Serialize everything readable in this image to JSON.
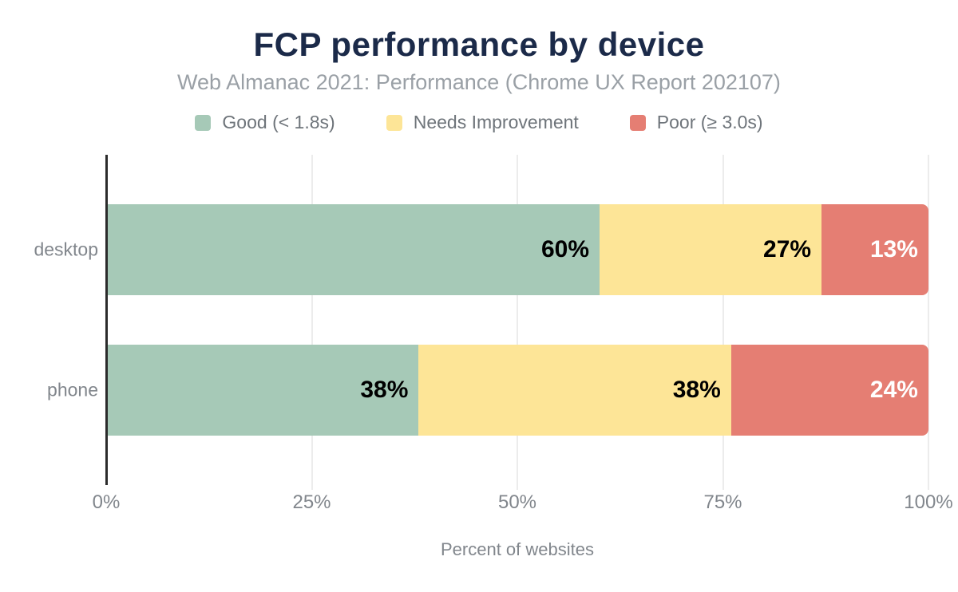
{
  "chart_data": {
    "type": "bar",
    "orientation": "horizontal",
    "stacked": true,
    "title": "FCP performance by device",
    "subtitle": "Web Almanac 2021: Performance (Chrome UX Report 202107)",
    "xlabel": "Percent of websites",
    "categories": [
      "desktop",
      "phone"
    ],
    "series": [
      {
        "name": "Good (< 1.8s)",
        "color": "#a6c9b7",
        "label_color": "#000000",
        "values": [
          60,
          38
        ]
      },
      {
        "name": "Needs Improvement",
        "color": "#fde597",
        "label_color": "#000000",
        "values": [
          27,
          38
        ]
      },
      {
        "name": "Poor (≥ 3.0s)",
        "color": "#e57e73",
        "label_color": "#ffffff",
        "values": [
          13,
          24
        ]
      }
    ],
    "value_suffix": "%",
    "data_labels": "inside-right",
    "xlim": [
      0,
      100
    ],
    "x_ticks": [
      {
        "label": "0%",
        "value": 0
      },
      {
        "label": "25%",
        "value": 25
      },
      {
        "label": "50%",
        "value": 50
      },
      {
        "label": "75%",
        "value": 75
      },
      {
        "label": "100%",
        "value": 100
      }
    ],
    "legend_position": "top",
    "grid": "vertical",
    "style": {
      "title_color": "#1b2a49",
      "subtitle_color": "#9aa0a6",
      "legend_text_color": "#6e747a",
      "axis_text_color": "#81868c",
      "axis_line_color": "#2b2b2b",
      "gridline_color": "#ececec",
      "background": "#ffffff"
    }
  }
}
